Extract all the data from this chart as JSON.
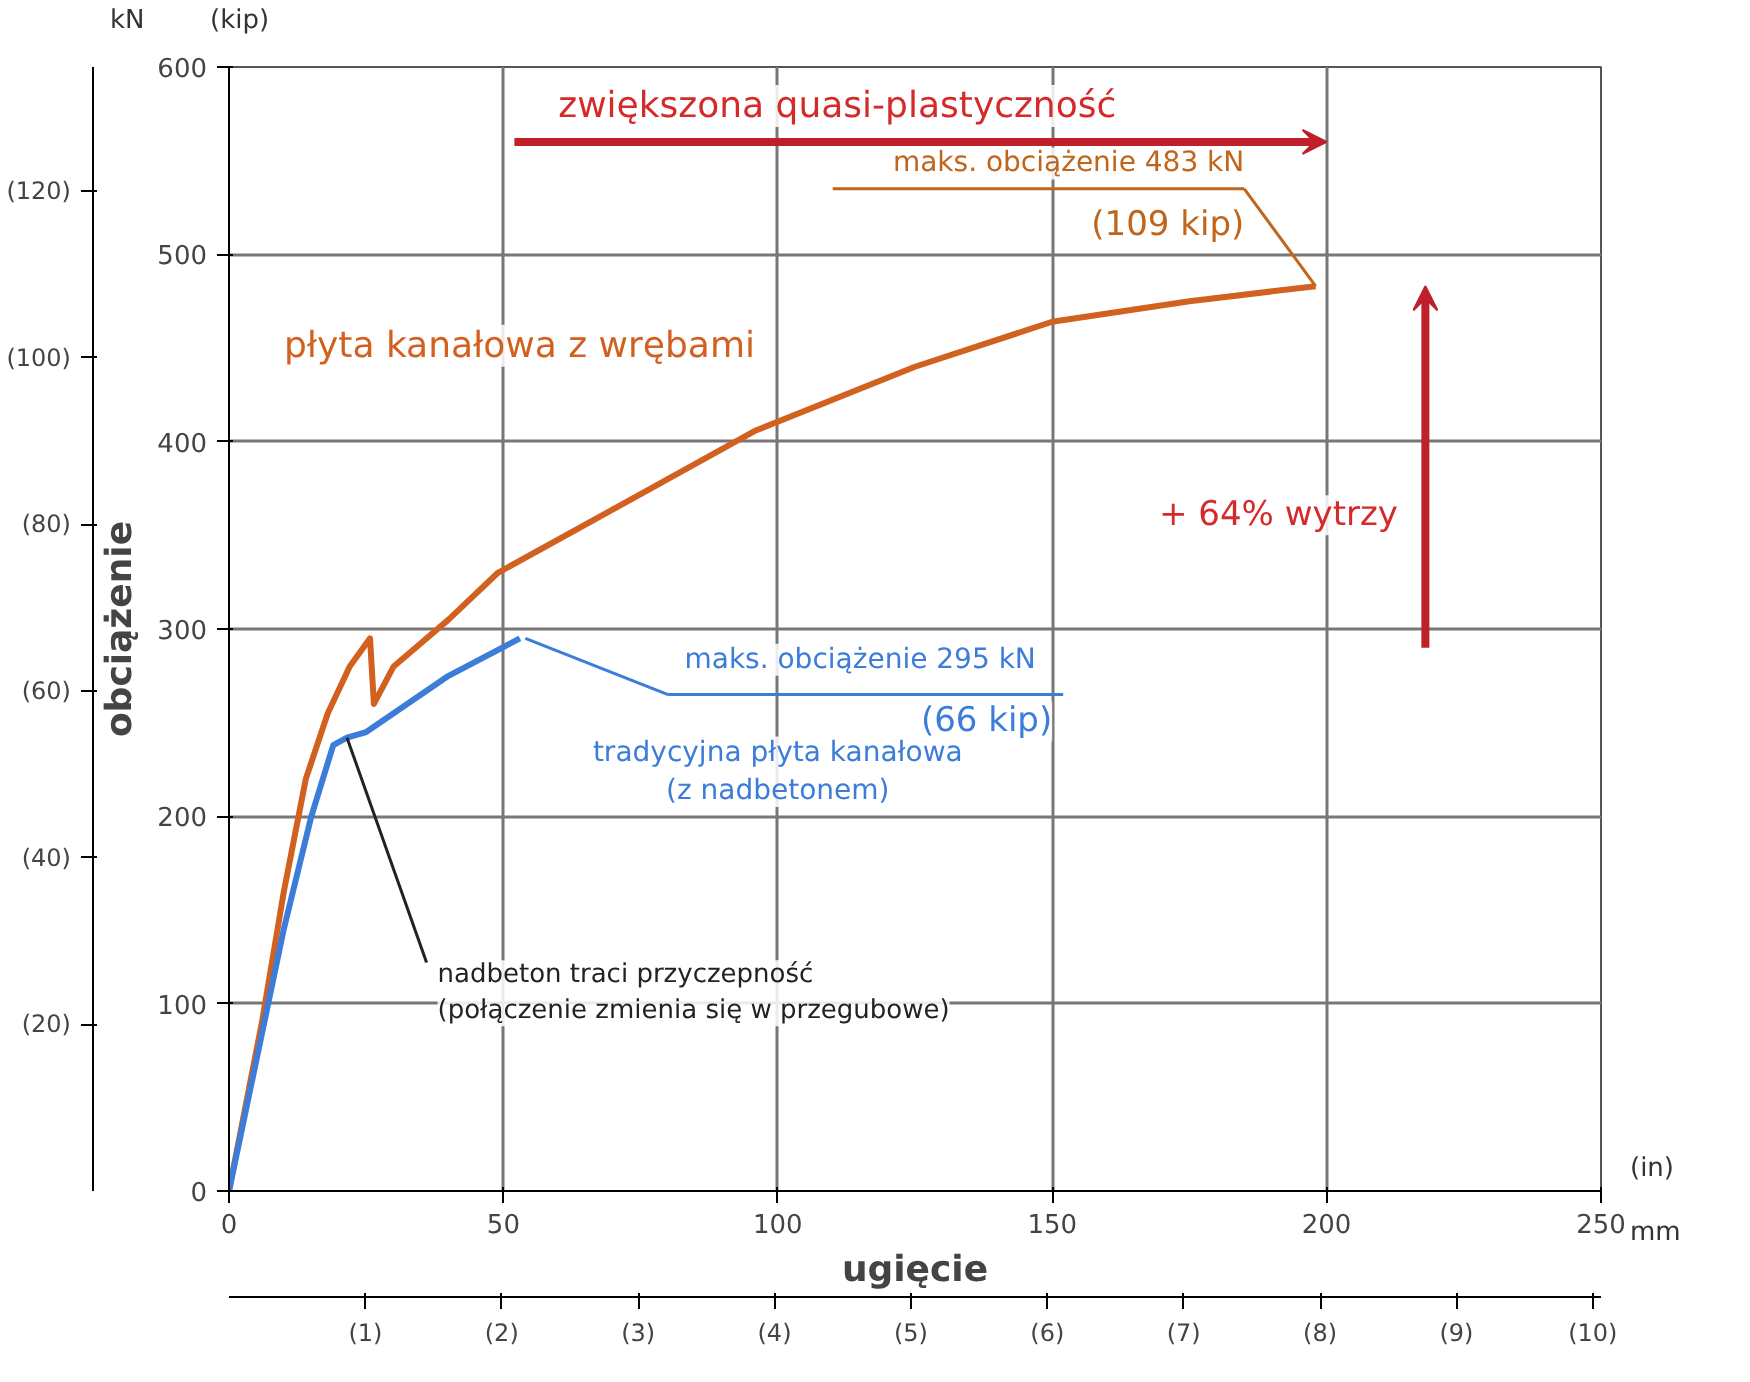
{
  "chart_data": {
    "type": "line",
    "xlabel": "ugięcie",
    "ylabel": "obciążenie",
    "xlim": [
      0,
      250
    ],
    "xticks": [
      0,
      50,
      100,
      150,
      200,
      250
    ],
    "ylim": [
      0,
      600
    ],
    "yticks": [
      0,
      100,
      200,
      300,
      400,
      500,
      600
    ],
    "x2lim": [
      0,
      10.06
    ],
    "x2ticks": [
      {
        "value": 1,
        "label": "(1)"
      },
      {
        "value": 2,
        "label": "(2)"
      },
      {
        "value": 3,
        "label": "(3)"
      },
      {
        "value": 4,
        "label": "(4)"
      },
      {
        "value": 5,
        "label": "(5)"
      },
      {
        "value": 6,
        "label": "(6)"
      },
      {
        "value": 7,
        "label": "(7)"
      },
      {
        "value": 8,
        "label": "(8)"
      },
      {
        "value": 9,
        "label": "(9)"
      },
      {
        "value": 10,
        "label": "(10)"
      }
    ],
    "y2lim": [
      0,
      134.9
    ],
    "y2ticks": [
      {
        "value": 20,
        "label": "(20)"
      },
      {
        "value": 40,
        "label": "(40)"
      },
      {
        "value": 60,
        "label": "(60)"
      },
      {
        "value": 80,
        "label": "(80)"
      },
      {
        "value": 100,
        "label": "(100)"
      },
      {
        "value": 120,
        "label": "(120)"
      }
    ],
    "grid": true,
    "marker": "none",
    "line_style": "solid",
    "series": [
      {
        "name": "płyta kanałowa z wrębami",
        "color": "#d2601f",
        "x": [
          0,
          3,
          6,
          10,
          14,
          18,
          22,
          25.7,
          26.4,
          30,
          40,
          49,
          75,
          96,
          125,
          150,
          175,
          198
        ],
        "values": [
          0,
          45,
          90,
          160,
          220,
          255,
          280,
          295,
          260,
          280,
          305,
          330,
          372,
          406,
          440,
          464,
          475,
          483
        ]
      },
      {
        "name": "tradycyjna płyta kanałowa (z nadbetonem)",
        "color": "#3b7dd8",
        "x": [
          0,
          5,
          10,
          15,
          19,
          21.5,
          25,
          30,
          40,
          53
        ],
        "values": [
          0,
          70,
          140,
          200,
          238,
          242,
          245,
          255,
          275,
          295
        ]
      }
    ],
    "annotations": [
      "zwiększona quasi-plastyczność",
      "+ 64% wytrzy",
      {
        "text": "maks. obciążenie 483 kN",
        "x": 198,
        "y": 483
      },
      {
        "text": "(109 kip)",
        "x": 198,
        "y": 483
      },
      {
        "text": "maks. obciążenie 295 kN",
        "x": 53,
        "y": 295
      },
      "(66 kip)",
      {
        "text": "nadbeton traci przyczepność\n(połączenie zmienia się w przegubowe)",
        "x": 21.5,
        "y": 242
      },
      "kN",
      "(kip)",
      "mm",
      "(in)"
    ]
  }
}
